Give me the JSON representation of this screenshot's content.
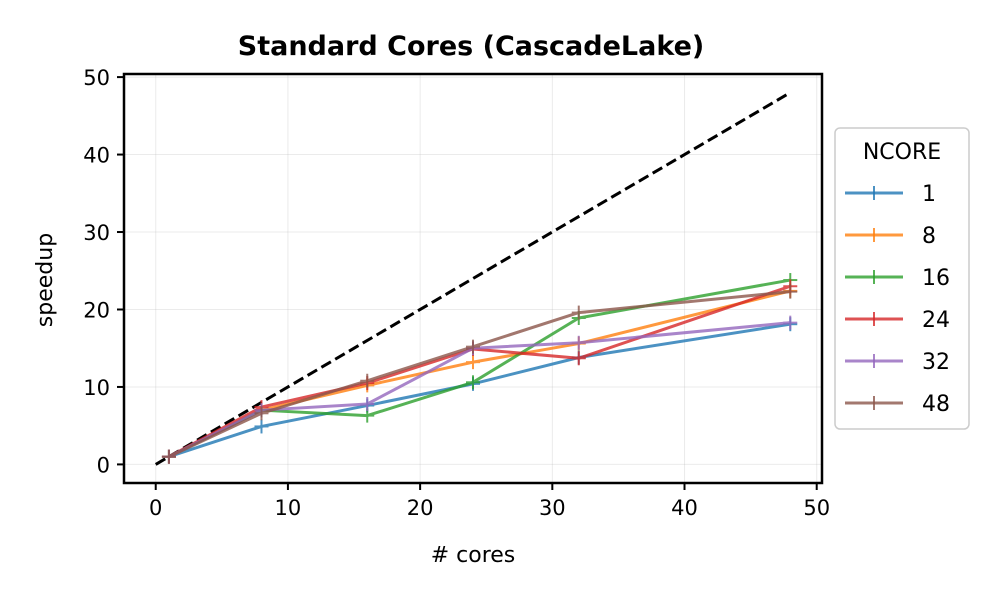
{
  "chart_data": {
    "type": "line",
    "title": "Standard Cores (CascadeLake)",
    "xlabel": "# cores",
    "ylabel": "speedup",
    "xlim": [
      -2.4,
      50.4
    ],
    "ylim": [
      -2.4,
      50.4
    ],
    "xticks": [
      0,
      10,
      20,
      30,
      40,
      50
    ],
    "yticks": [
      0,
      10,
      20,
      30,
      40,
      50
    ],
    "grid": true,
    "legend": {
      "title": "NCORE",
      "position": "right"
    },
    "x": [
      1,
      8,
      16,
      24,
      32,
      48
    ],
    "ideal": {
      "x": [
        0,
        48
      ],
      "y": [
        0,
        48
      ],
      "color": "#000000",
      "style": "dashed"
    },
    "series": [
      {
        "name": "1",
        "color": "#1f77b4",
        "values": [
          1.0,
          4.9,
          7.6,
          10.4,
          13.8,
          18.1
        ]
      },
      {
        "name": "8",
        "color": "#ff7f0e",
        "values": [
          1.0,
          7.0,
          10.2,
          13.2,
          15.6,
          22.4
        ]
      },
      {
        "name": "16",
        "color": "#2ca02c",
        "values": [
          1.0,
          7.0,
          6.3,
          10.6,
          18.9,
          23.8
        ]
      },
      {
        "name": "24",
        "color": "#d62728",
        "values": [
          1.0,
          7.4,
          10.5,
          14.9,
          13.7,
          23.0
        ]
      },
      {
        "name": "32",
        "color": "#9467bd",
        "values": [
          1.0,
          7.0,
          7.8,
          15.0,
          15.7,
          18.3
        ]
      },
      {
        "name": "48",
        "color": "#8c564b",
        "values": [
          1.0,
          6.6,
          10.8,
          15.2,
          19.6,
          22.3
        ]
      }
    ]
  }
}
